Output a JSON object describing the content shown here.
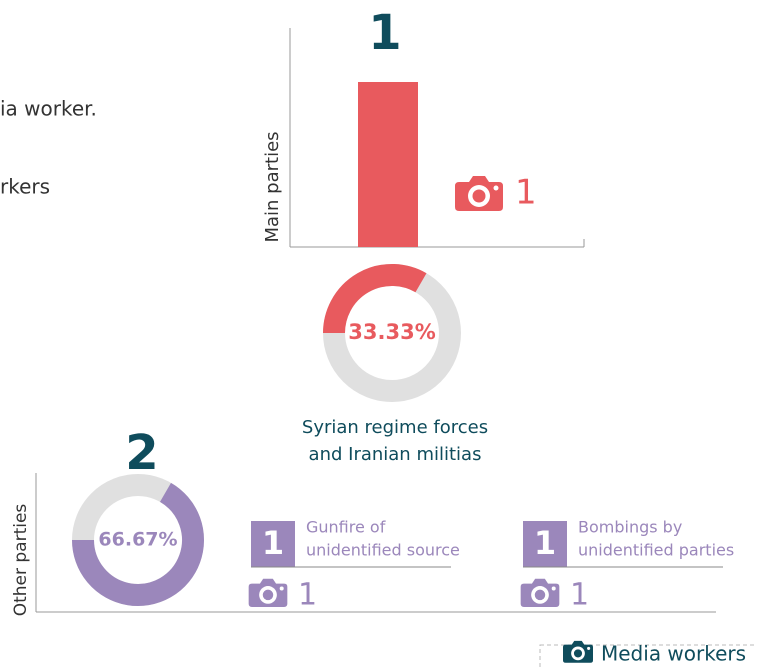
{
  "intro": {
    "line1": "ia worker.",
    "line2": "rkers"
  },
  "main": {
    "axis_label": "Main parties",
    "count": 1,
    "media_count": 1,
    "share": 33.33,
    "share_label": "33.33%",
    "party": [
      "Syrian regime forces",
      "and Iranian militias"
    ]
  },
  "other": {
    "axis_label": "Other parties",
    "count": 2,
    "share": 66.67,
    "share_label": "66.67%",
    "items": [
      {
        "count": 1,
        "label": [
          "Gunfire of",
          "unidentified source"
        ],
        "media_count": 1
      },
      {
        "count": 1,
        "label": [
          "Bombings by",
          "unidentified parties"
        ],
        "media_count": 1
      }
    ]
  },
  "legend": "Media workers"
}
